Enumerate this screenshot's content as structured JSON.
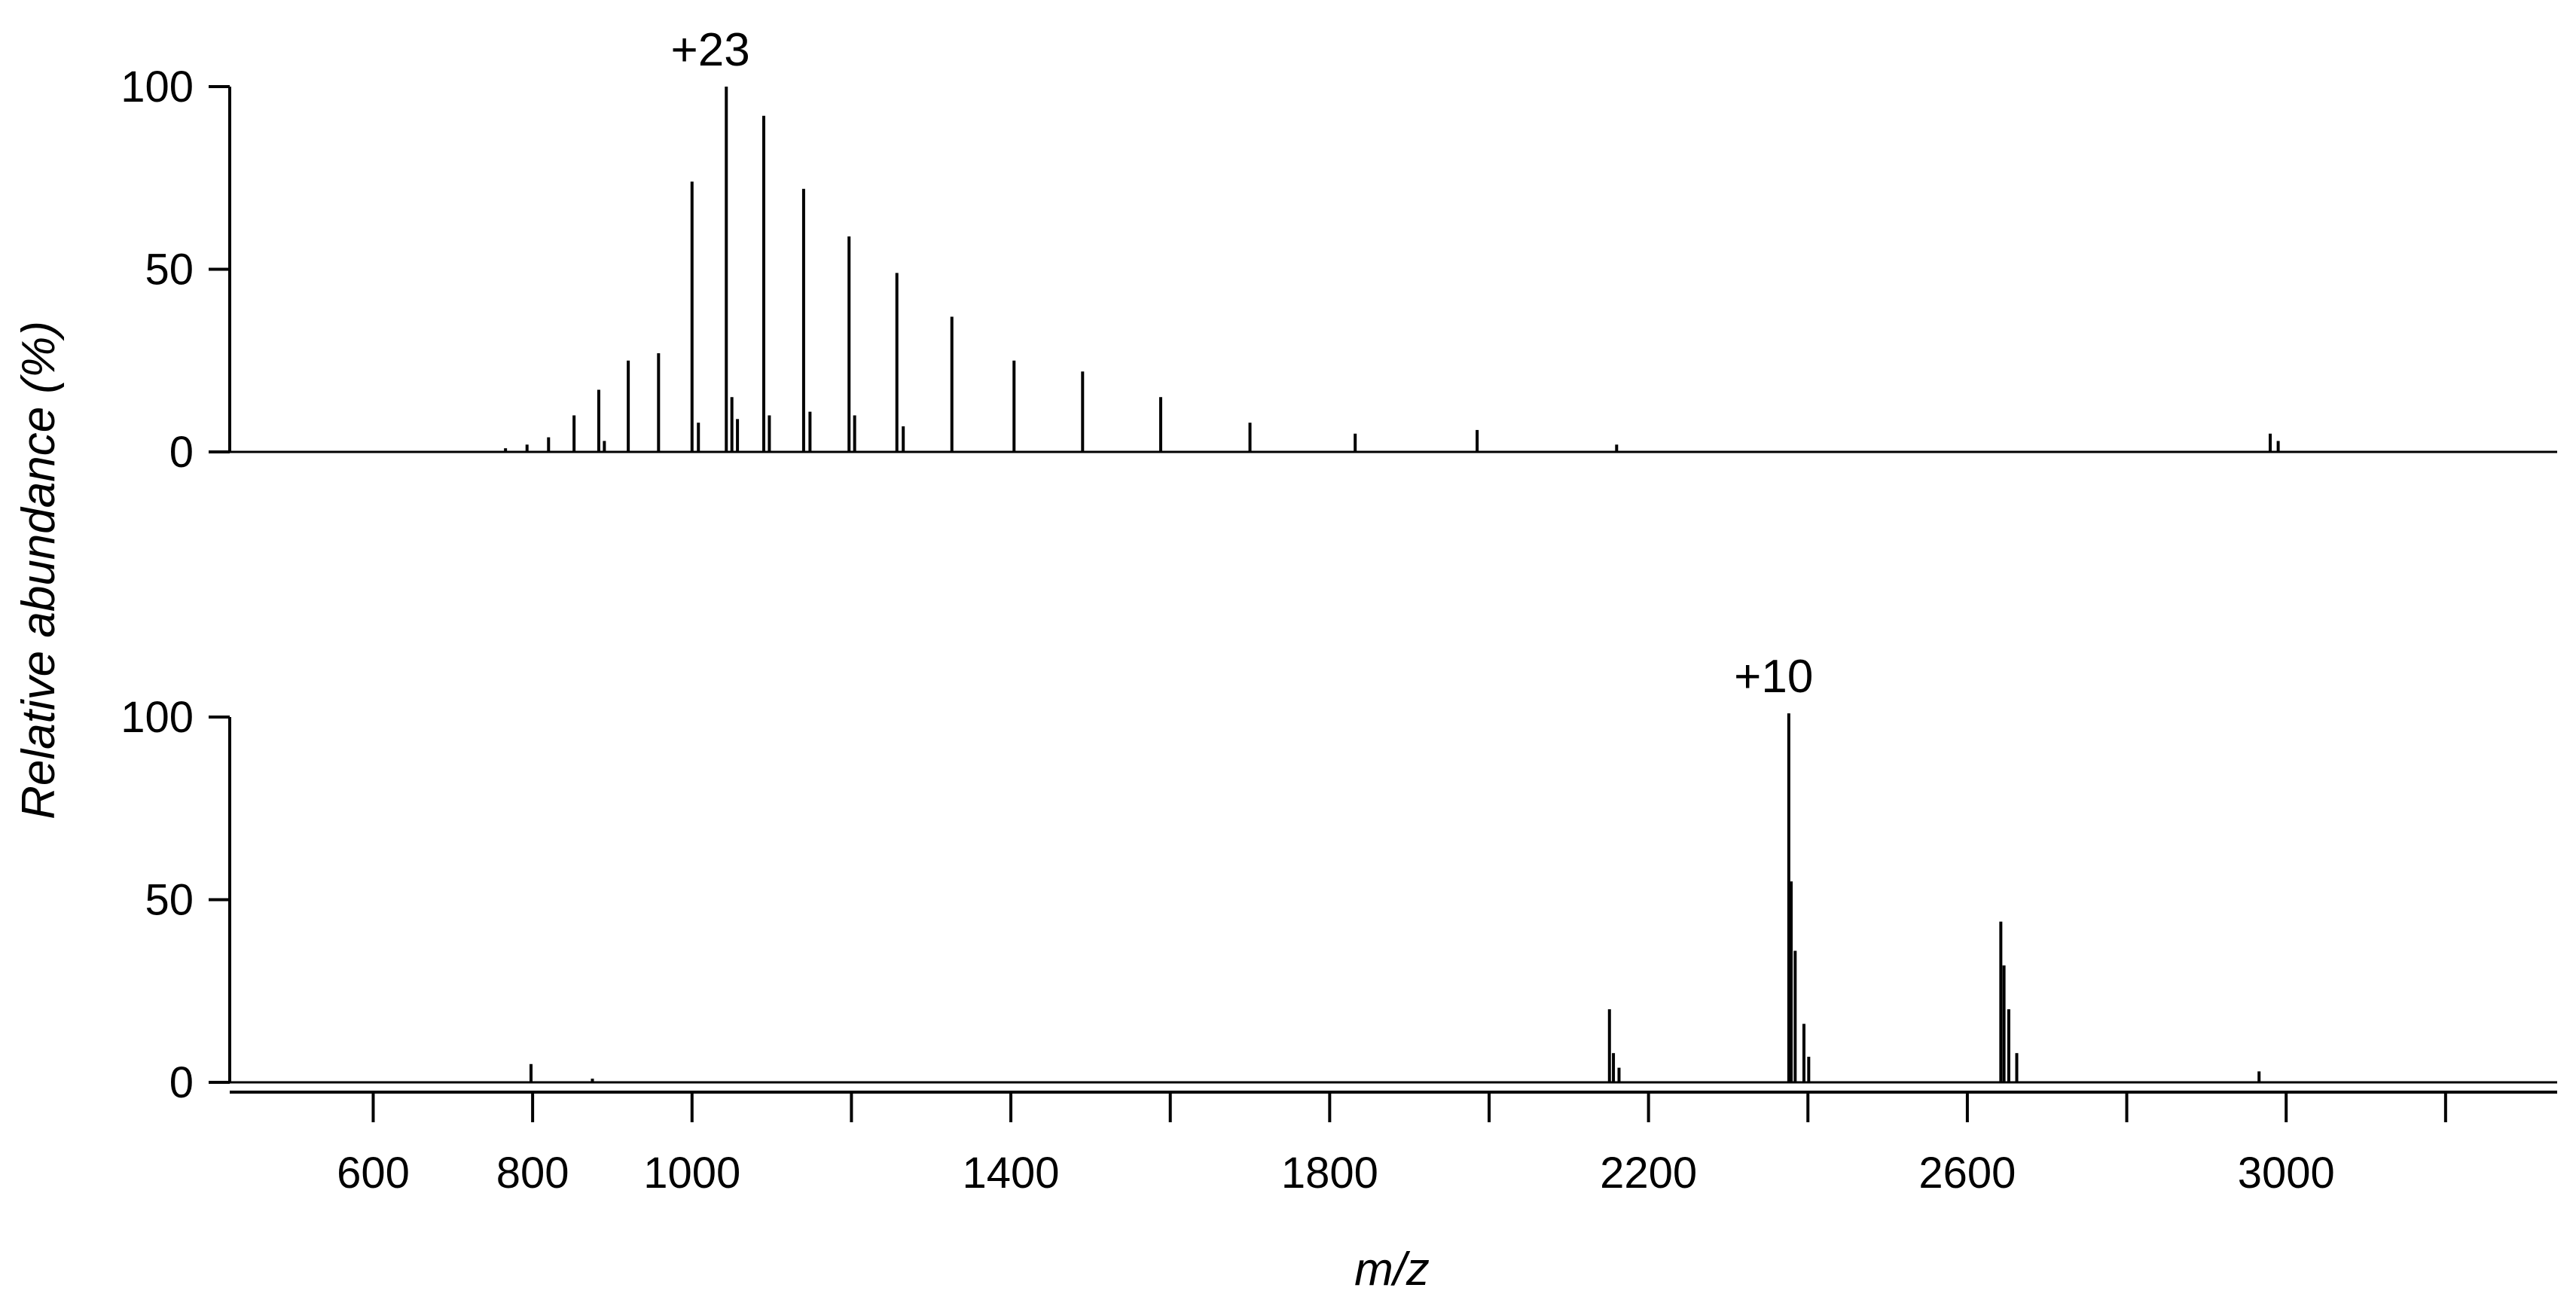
{
  "chart_data": {
    "type": "line",
    "xlabel": "m/z",
    "ylabel": "Relative abundance (%)",
    "xlim": [
      420,
      3340
    ],
    "x_ticks": [
      600,
      800,
      1000,
      1400,
      1800,
      2200,
      2600,
      3000
    ],
    "x_minor_ticks": [
      1200,
      1600,
      2000,
      2400,
      2800,
      3200
    ],
    "grid": false,
    "legend": "none",
    "panels": [
      {
        "ylim": [
          0,
          100
        ],
        "y_ticks": [
          0,
          50,
          100
        ],
        "annotation": {
          "text": "+23",
          "x": 1023
        },
        "peaks": [
          {
            "x": 766,
            "y": 1
          },
          {
            "x": 793,
            "y": 2
          },
          {
            "x": 820,
            "y": 4
          },
          {
            "x": 852,
            "y": 10
          },
          {
            "x": 883,
            "y": 17
          },
          {
            "x": 890,
            "y": 3
          },
          {
            "x": 920,
            "y": 25
          },
          {
            "x": 958,
            "y": 27
          },
          {
            "x": 1000,
            "y": 74
          },
          {
            "x": 1008,
            "y": 8
          },
          {
            "x": 1043,
            "y": 100
          },
          {
            "x": 1050,
            "y": 15
          },
          {
            "x": 1057,
            "y": 9
          },
          {
            "x": 1090,
            "y": 92
          },
          {
            "x": 1097,
            "y": 10
          },
          {
            "x": 1140,
            "y": 72
          },
          {
            "x": 1148,
            "y": 11
          },
          {
            "x": 1197,
            "y": 59
          },
          {
            "x": 1204,
            "y": 10
          },
          {
            "x": 1257,
            "y": 49
          },
          {
            "x": 1265,
            "y": 7
          },
          {
            "x": 1326,
            "y": 37
          },
          {
            "x": 1404,
            "y": 25
          },
          {
            "x": 1490,
            "y": 22
          },
          {
            "x": 1588,
            "y": 15
          },
          {
            "x": 1700,
            "y": 8
          },
          {
            "x": 1832,
            "y": 5
          },
          {
            "x": 1985,
            "y": 6
          },
          {
            "x": 2160,
            "y": 2
          },
          {
            "x": 2980,
            "y": 5
          },
          {
            "x": 2990,
            "y": 3
          }
        ]
      },
      {
        "ylim": [
          0,
          100
        ],
        "y_ticks": [
          0,
          50,
          100
        ],
        "annotation": {
          "text": "+10",
          "x": 2357
        },
        "peaks": [
          {
            "x": 798,
            "y": 5
          },
          {
            "x": 875,
            "y": 1
          },
          {
            "x": 2151,
            "y": 20
          },
          {
            "x": 2156,
            "y": 8
          },
          {
            "x": 2163,
            "y": 4
          },
          {
            "x": 2376,
            "y": 101
          },
          {
            "x": 2379,
            "y": 55
          },
          {
            "x": 2384,
            "y": 36
          },
          {
            "x": 2395,
            "y": 16
          },
          {
            "x": 2401,
            "y": 7
          },
          {
            "x": 2642,
            "y": 44
          },
          {
            "x": 2646,
            "y": 32
          },
          {
            "x": 2652,
            "y": 20
          },
          {
            "x": 2662,
            "y": 8
          },
          {
            "x": 2966,
            "y": 3
          }
        ]
      }
    ]
  }
}
